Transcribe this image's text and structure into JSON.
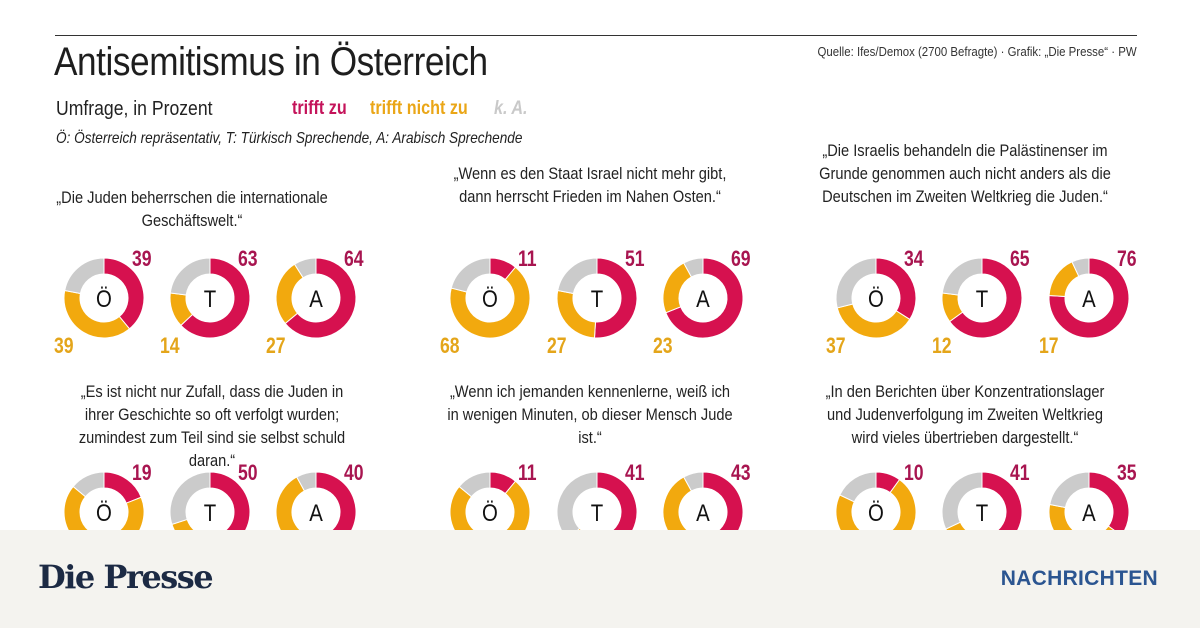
{
  "header": {
    "title": "Antisemitismus in Österreich",
    "source": "Quelle: Ifes/Demox (2700 Befragte) · Grafik: „Die Presse“ · PW",
    "subtitle": "Umfrage, in Prozent",
    "note": "Ö: Österreich repräsentativ, T: Türkisch Sprechende, A: Arabisch Sprechende"
  },
  "footer": {
    "brand": "Die Presse",
    "section": "NACHRICHTEN"
  },
  "chart_data": {
    "type": "pie",
    "subtype": "donut",
    "title": "Antisemitismus in Österreich",
    "subtitle": "Umfrage, in Prozent",
    "legend": [
      {
        "name": "trifft zu",
        "color": "#d6114f"
      },
      {
        "name": "trifft nicht zu",
        "color": "#f2a90e"
      },
      {
        "name": "k. A.",
        "color": "#cbcbcb"
      }
    ],
    "groups": [
      "Ö",
      "T",
      "A"
    ],
    "panels": [
      {
        "quote": "„Die Juden beherrschen die internationale Geschäftswelt.“",
        "rings": [
          {
            "group": "Ö",
            "yes": 39,
            "no": 39,
            "no_label": "39"
          },
          {
            "group": "T",
            "yes": 63,
            "no": 14,
            "no_label": "14"
          },
          {
            "group": "A",
            "yes": 64,
            "no": 27,
            "no_label": "27"
          }
        ]
      },
      {
        "quote": "„Wenn es den Staat Israel nicht mehr gibt, dann herrscht Frieden im Nahen Osten.“",
        "rings": [
          {
            "group": "Ö",
            "yes": 11,
            "no": 68,
            "no_label": "68"
          },
          {
            "group": "T",
            "yes": 51,
            "no": 27,
            "no_label": "27"
          },
          {
            "group": "A",
            "yes": 69,
            "no": 23,
            "no_label": "23"
          }
        ]
      },
      {
        "quote": "„Die Israelis behandeln die Palästinenser im Grunde genommen auch nicht anders als die Deutschen im Zweiten Weltkrieg die Juden.“",
        "rings": [
          {
            "group": "Ö",
            "yes": 34,
            "no": 37,
            "no_label": "37"
          },
          {
            "group": "T",
            "yes": 65,
            "no": 12,
            "no_label": "12"
          },
          {
            "group": "A",
            "yes": 76,
            "no": 17,
            "no_label": "17"
          }
        ]
      },
      {
        "quote": "„Es ist nicht nur Zufall, dass die Juden in ihrer Geschichte so oft verfolgt wurden; zumindest zum Teil sind sie selbst schuld daran.“",
        "rings": [
          {
            "group": "Ö",
            "yes": 19,
            "no": 67,
            "no_label": ""
          },
          {
            "group": "T",
            "yes": 50,
            "no": 20,
            "no_label": ""
          },
          {
            "group": "A",
            "yes": 40,
            "no": 52,
            "no_label": ""
          }
        ]
      },
      {
        "quote": "„Wenn ich jemanden kennenlerne, weiß ich in wenigen Minuten, ob dieser Mensch Jude ist.“",
        "rings": [
          {
            "group": "Ö",
            "yes": 11,
            "no": 75,
            "no_label": ""
          },
          {
            "group": "T",
            "yes": 41,
            "no": 22,
            "no_label": ""
          },
          {
            "group": "A",
            "yes": 43,
            "no": 49,
            "no_label": ""
          }
        ]
      },
      {
        "quote": "„In den Berichten über Konzentrationslager und Judenverfolgung im Zweiten Weltkrieg wird vieles übertrieben dargestellt.“",
        "rings": [
          {
            "group": "Ö",
            "yes": 10,
            "no": 72,
            "no_label": ""
          },
          {
            "group": "T",
            "yes": 41,
            "no": 27,
            "no_label": ""
          },
          {
            "group": "A",
            "yes": 35,
            "no": 43,
            "no_label": ""
          }
        ]
      }
    ]
  }
}
